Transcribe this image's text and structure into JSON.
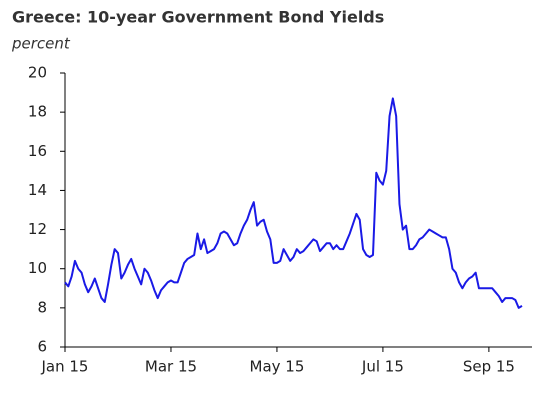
{
  "chart_data": {
    "type": "line",
    "title": "Greece: 10-year Government Bond Yields",
    "subtitle": "percent",
    "color": "#1a1ae6",
    "ylim": [
      6,
      20
    ],
    "yticks": [
      6,
      8,
      10,
      12,
      14,
      16,
      18,
      20
    ],
    "grid": false,
    "categories": [
      "Jan 15",
      null,
      null,
      null,
      null,
      null,
      null,
      null,
      null,
      null,
      null,
      null,
      null,
      null,
      null,
      null,
      null,
      null,
      null,
      null,
      null,
      null,
      null,
      null,
      null,
      null,
      null,
      null,
      null,
      null,
      null,
      null,
      "Mar 15",
      null,
      null,
      null,
      null,
      null,
      null,
      null,
      null,
      null,
      null,
      null,
      null,
      null,
      null,
      null,
      null,
      null,
      null,
      null,
      null,
      null,
      null,
      null,
      null,
      null,
      null,
      null,
      null,
      null,
      null,
      null,
      "May 15",
      null,
      null,
      null,
      null,
      null,
      null,
      null,
      null,
      null,
      null,
      null,
      null,
      null,
      null,
      null,
      null,
      null,
      null,
      null,
      null,
      null,
      null,
      null,
      null,
      null,
      null,
      null,
      null,
      null,
      null,
      null,
      "Jul 15",
      null,
      null,
      null,
      null,
      null,
      null,
      null,
      null,
      null,
      null,
      null,
      null,
      null,
      null,
      null,
      null,
      null,
      null,
      null,
      null,
      null,
      null,
      null,
      null,
      null,
      null,
      null,
      null,
      null,
      null,
      null,
      "Sep 15",
      null,
      null,
      null,
      null,
      null,
      null,
      null,
      null,
      null,
      null
    ],
    "values": [
      9.3,
      9.1,
      9.6,
      10.4,
      10.0,
      9.8,
      9.2,
      8.8,
      9.1,
      9.5,
      9.0,
      8.5,
      8.3,
      9.2,
      10.2,
      11.0,
      10.8,
      9.5,
      9.8,
      10.2,
      10.5,
      10.0,
      9.6,
      9.2,
      10.0,
      9.8,
      9.4,
      8.9,
      8.5,
      8.9,
      9.1,
      9.3,
      9.4,
      9.3,
      9.3,
      9.8,
      10.3,
      10.5,
      10.6,
      10.7,
      11.8,
      11.0,
      11.5,
      10.8,
      10.9,
      11.0,
      11.3,
      11.8,
      11.9,
      11.8,
      11.5,
      11.2,
      11.3,
      11.8,
      12.2,
      12.5,
      13.0,
      13.4,
      12.2,
      12.4,
      12.5,
      11.9,
      11.5,
      10.3,
      10.3,
      10.4,
      11.0,
      10.7,
      10.4,
      10.6,
      11.0,
      10.8,
      10.9,
      11.1,
      11.3,
      11.5,
      11.4,
      10.9,
      11.1,
      11.3,
      11.3,
      11.0,
      11.2,
      11.0,
      11.0,
      11.4,
      11.8,
      12.3,
      12.8,
      12.5,
      11.0,
      10.7,
      10.6,
      10.7,
      14.9,
      14.5,
      14.3,
      15.0,
      17.8,
      18.7,
      17.8,
      13.3,
      12.0,
      12.2,
      11.0,
      11.0,
      11.2,
      11.5,
      11.6,
      11.8,
      12.0,
      11.9,
      11.8,
      11.7,
      11.6,
      11.6,
      11.0,
      10.0,
      9.8,
      9.3,
      9.0,
      9.3,
      9.5,
      9.6,
      9.8,
      9.0,
      9.0,
      9.0,
      9.0,
      9.0,
      8.8,
      8.6,
      8.3,
      8.5,
      8.5,
      8.5,
      8.4,
      8.0,
      8.1
    ]
  }
}
